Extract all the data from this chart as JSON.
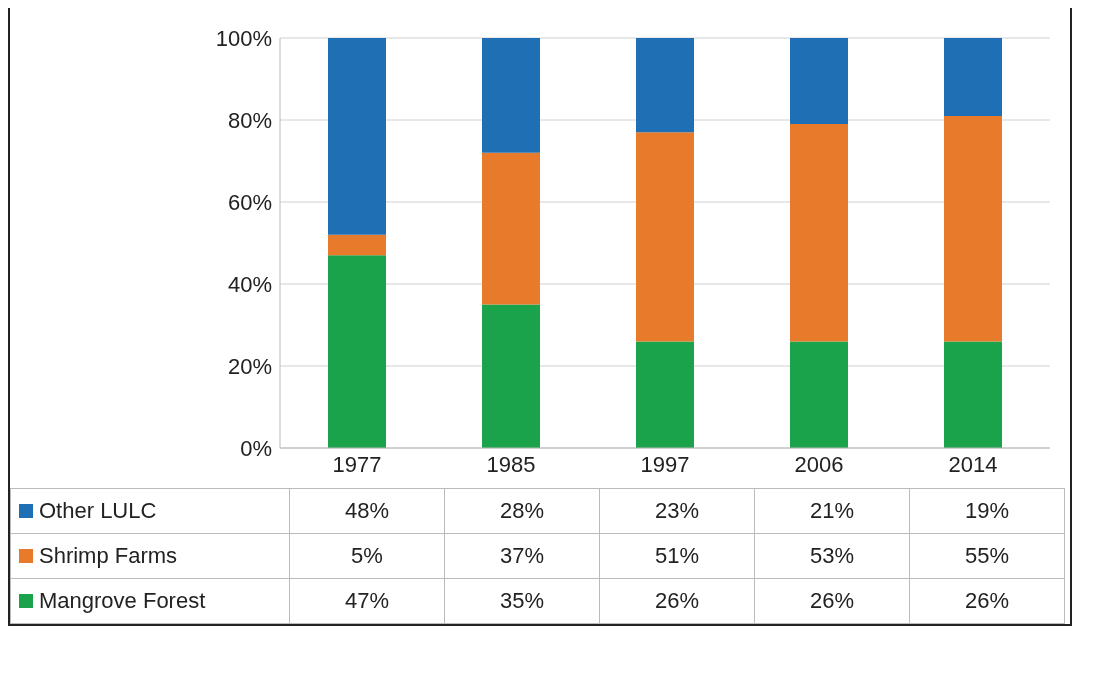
{
  "chart_data": {
    "type": "bar",
    "stacked": true,
    "categories": [
      "1977",
      "1985",
      "1997",
      "2006",
      "2014"
    ],
    "series": [
      {
        "name": "Mangrove Forest",
        "color": "#1aa34a",
        "values": [
          47,
          35,
          26,
          26,
          26
        ],
        "value_labels": [
          "47%",
          "35%",
          "26%",
          "26%",
          "26%"
        ]
      },
      {
        "name": "Shrimp Farms",
        "color": "#e87a2c",
        "values": [
          5,
          37,
          51,
          53,
          55
        ],
        "value_labels": [
          "5%",
          "37%",
          "51%",
          "53%",
          "55%"
        ]
      },
      {
        "name": "Other LULC",
        "color": "#1f6fb5",
        "values": [
          48,
          28,
          23,
          21,
          19
        ],
        "value_labels": [
          "48%",
          "28%",
          "23%",
          "21%",
          "19%"
        ]
      }
    ],
    "ylim": [
      0,
      100
    ],
    "yticks": [
      {
        "value": 0,
        "label": "0%"
      },
      {
        "value": 20,
        "label": "20%"
      },
      {
        "value": 40,
        "label": "40%"
      },
      {
        "value": 60,
        "label": "60%"
      },
      {
        "value": 80,
        "label": "80%"
      },
      {
        "value": 100,
        "label": "100%"
      }
    ],
    "grid": "y",
    "legend": "bottom"
  }
}
